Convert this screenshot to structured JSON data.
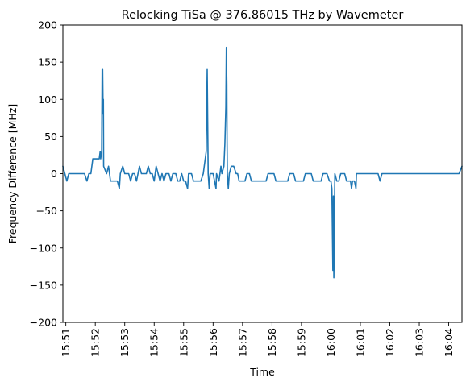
{
  "chart_data": {
    "type": "line",
    "title": "Relocking TiSa @ 376.86015 THz by Wavemeter",
    "xlabel": "Time",
    "ylabel": "Frequency Difference [MHz]",
    "ylim": [
      -200,
      200
    ],
    "yticks": [
      -200,
      -150,
      -100,
      -50,
      0,
      50,
      100,
      150,
      200
    ],
    "xlim": [
      "15:50:54",
      "16:04:27"
    ],
    "xticks": [
      "15:51",
      "15:52",
      "15:53",
      "15:54",
      "15:55",
      "15:56",
      "15:57",
      "15:58",
      "15:59",
      "16:00",
      "16:01",
      "16:02",
      "16:03",
      "16:04"
    ],
    "grid": false,
    "series": [
      {
        "color": "#1f77b4",
        "points": [
          [
            "15:50:54",
            10
          ],
          [
            "15:50:58",
            0
          ],
          [
            "15:51:02",
            -10
          ],
          [
            "15:51:06",
            0
          ],
          [
            "15:51:30",
            0
          ],
          [
            "15:51:38",
            0
          ],
          [
            "15:51:43",
            -10
          ],
          [
            "15:51:47",
            0
          ],
          [
            "15:51:51",
            0
          ],
          [
            "15:51:55",
            20
          ],
          [
            "15:52:08",
            20
          ],
          [
            "15:52:10",
            30
          ],
          [
            "15:52:11",
            20
          ],
          [
            "15:52:13",
            30
          ],
          [
            "15:52:14",
            140
          ],
          [
            "15:52:15",
            140
          ],
          [
            "15:52:16",
            80
          ],
          [
            "15:52:16.5",
            100
          ],
          [
            "15:52:17",
            10
          ],
          [
            "15:52:23",
            0
          ],
          [
            "15:52:27",
            10
          ],
          [
            "15:52:31",
            -10
          ],
          [
            "15:52:45",
            -10
          ],
          [
            "15:52:49",
            -20
          ],
          [
            "15:52:51",
            0
          ],
          [
            "15:52:56",
            10
          ],
          [
            "15:53:00",
            0
          ],
          [
            "15:53:08",
            0
          ],
          [
            "15:53:12",
            -10
          ],
          [
            "15:53:16",
            0
          ],
          [
            "15:53:20",
            0
          ],
          [
            "15:53:24",
            -10
          ],
          [
            "15:53:30",
            10
          ],
          [
            "15:53:34",
            0
          ],
          [
            "15:53:44",
            0
          ],
          [
            "15:53:48",
            10
          ],
          [
            "15:53:52",
            0
          ],
          [
            "15:53:56",
            0
          ],
          [
            "15:54:00",
            -10
          ],
          [
            "15:54:04",
            10
          ],
          [
            "15:54:08",
            0
          ],
          [
            "15:54:12",
            -10
          ],
          [
            "15:54:16",
            0
          ],
          [
            "15:54:20",
            -10
          ],
          [
            "15:54:24",
            0
          ],
          [
            "15:54:30",
            0
          ],
          [
            "15:54:34",
            -10
          ],
          [
            "15:54:38",
            0
          ],
          [
            "15:54:44",
            0
          ],
          [
            "15:54:48",
            -10
          ],
          [
            "15:54:52",
            -10
          ],
          [
            "15:54:56",
            0
          ],
          [
            "15:55:00",
            -10
          ],
          [
            "15:55:04",
            -10
          ],
          [
            "15:55:08",
            -20
          ],
          [
            "15:55:10",
            0
          ],
          [
            "15:55:16",
            0
          ],
          [
            "15:55:20",
            -10
          ],
          [
            "15:55:35",
            -10
          ],
          [
            "15:55:40",
            0
          ],
          [
            "15:55:46",
            30
          ],
          [
            "15:55:48",
            140
          ],
          [
            "15:55:49",
            70
          ],
          [
            "15:55:50",
            0
          ],
          [
            "15:55:52",
            -20
          ],
          [
            "15:55:54",
            0
          ],
          [
            "15:56:00",
            0
          ],
          [
            "15:56:03",
            -10
          ],
          [
            "15:56:06",
            -20
          ],
          [
            "15:56:07",
            0
          ],
          [
            "15:56:12",
            -10
          ],
          [
            "15:56:16",
            10
          ],
          [
            "15:56:18",
            0
          ],
          [
            "15:56:22",
            10
          ],
          [
            "15:56:24",
            40
          ],
          [
            "15:56:26",
            90
          ],
          [
            "15:56:27",
            170
          ],
          [
            "15:56:28",
            120
          ],
          [
            "15:56:28.5",
            40
          ],
          [
            "15:56:29",
            0
          ],
          [
            "15:56:31",
            -20
          ],
          [
            "15:56:33",
            0
          ],
          [
            "15:56:37",
            10
          ],
          [
            "15:56:42",
            10
          ],
          [
            "15:56:47",
            0
          ],
          [
            "15:56:50",
            0
          ],
          [
            "15:56:53",
            -10
          ],
          [
            "15:57:05",
            -10
          ],
          [
            "15:57:09",
            0
          ],
          [
            "15:57:14",
            0
          ],
          [
            "15:57:18",
            -10
          ],
          [
            "15:57:48",
            -10
          ],
          [
            "15:57:52",
            0
          ],
          [
            "15:58:04",
            0
          ],
          [
            "15:58:08",
            -10
          ],
          [
            "15:58:32",
            -10
          ],
          [
            "15:58:36",
            0
          ],
          [
            "15:58:44",
            0
          ],
          [
            "15:58:48",
            -10
          ],
          [
            "15:59:04",
            -10
          ],
          [
            "15:59:08",
            0
          ],
          [
            "15:59:20",
            0
          ],
          [
            "15:59:24",
            -10
          ],
          [
            "15:59:40",
            -10
          ],
          [
            "15:59:44",
            0
          ],
          [
            "15:59:52",
            0
          ],
          [
            "15:59:57",
            -10
          ],
          [
            "16:00:00",
            -10
          ],
          [
            "16:00:02",
            -20
          ],
          [
            "16:00:04",
            -130
          ],
          [
            "16:00:05",
            -30
          ],
          [
            "16:00:06",
            -140
          ],
          [
            "16:00:08",
            0
          ],
          [
            "16:00:12",
            -10
          ],
          [
            "16:00:16",
            -10
          ],
          [
            "16:00:20",
            0
          ],
          [
            "16:00:28",
            0
          ],
          [
            "16:00:32",
            -10
          ],
          [
            "16:00:40",
            -10
          ],
          [
            "16:00:42",
            -20
          ],
          [
            "16:00:44",
            -10
          ],
          [
            "16:00:48",
            -10
          ],
          [
            "16:00:51",
            -20
          ],
          [
            "16:00:52",
            0
          ],
          [
            "16:01:00",
            0
          ],
          [
            "16:01:30",
            0
          ],
          [
            "16:01:36",
            0
          ],
          [
            "16:01:40",
            -10
          ],
          [
            "16:01:44",
            0
          ],
          [
            "16:02:40",
            0
          ],
          [
            "16:02:48",
            0
          ],
          [
            "16:02:55",
            0
          ],
          [
            "16:03:10",
            0
          ],
          [
            "16:03:30",
            0
          ],
          [
            "16:03:45",
            0
          ],
          [
            "16:03:52",
            0
          ],
          [
            "16:04:05",
            0
          ],
          [
            "16:04:10",
            0
          ],
          [
            "16:04:21",
            0
          ],
          [
            "16:04:27",
            10
          ]
        ]
      }
    ]
  }
}
